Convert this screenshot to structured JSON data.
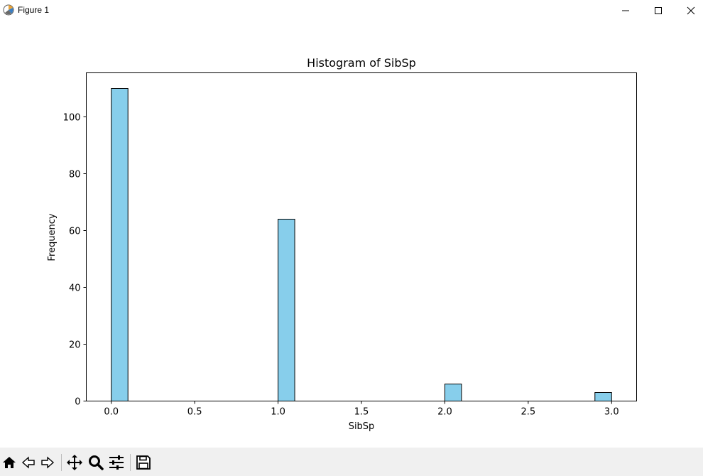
{
  "window": {
    "title": "Figure 1",
    "icon": "matplotlib-icon",
    "controls": [
      "minimize-icon",
      "maximize-icon",
      "close-icon"
    ]
  },
  "toolbar": {
    "buttons": [
      "home-icon",
      "back-icon",
      "forward-icon",
      "pan-icon",
      "zoom-icon",
      "configure-subplots-icon",
      "save-icon"
    ]
  },
  "chart_data": {
    "type": "bar",
    "title": "Histogram of SibSp",
    "xlabel": "SibSp",
    "ylabel": "Frequency",
    "xlim": [
      -0.15,
      3.15
    ],
    "ylim": [
      0,
      115.5
    ],
    "xticks": [
      0.0,
      0.5,
      1.0,
      1.5,
      2.0,
      2.5,
      3.0
    ],
    "xtick_labels": [
      "0.0",
      "0.5",
      "1.0",
      "1.5",
      "2.0",
      "2.5",
      "3.0"
    ],
    "yticks": [
      0,
      20,
      40,
      60,
      80,
      100
    ],
    "ytick_labels": [
      "0",
      "20",
      "40",
      "60",
      "80",
      "100"
    ],
    "bin_width": 0.1,
    "bars": [
      {
        "x_start": 0.0,
        "x_end": 0.1,
        "value": 110
      },
      {
        "x_start": 1.0,
        "x_end": 1.1,
        "value": 64
      },
      {
        "x_start": 2.0,
        "x_end": 2.1,
        "value": 6
      },
      {
        "x_start": 2.9,
        "x_end": 3.0,
        "value": 3
      }
    ],
    "bar_color": "#87ceeb",
    "edge_color": "#000000",
    "grid": false,
    "legend": "none"
  }
}
